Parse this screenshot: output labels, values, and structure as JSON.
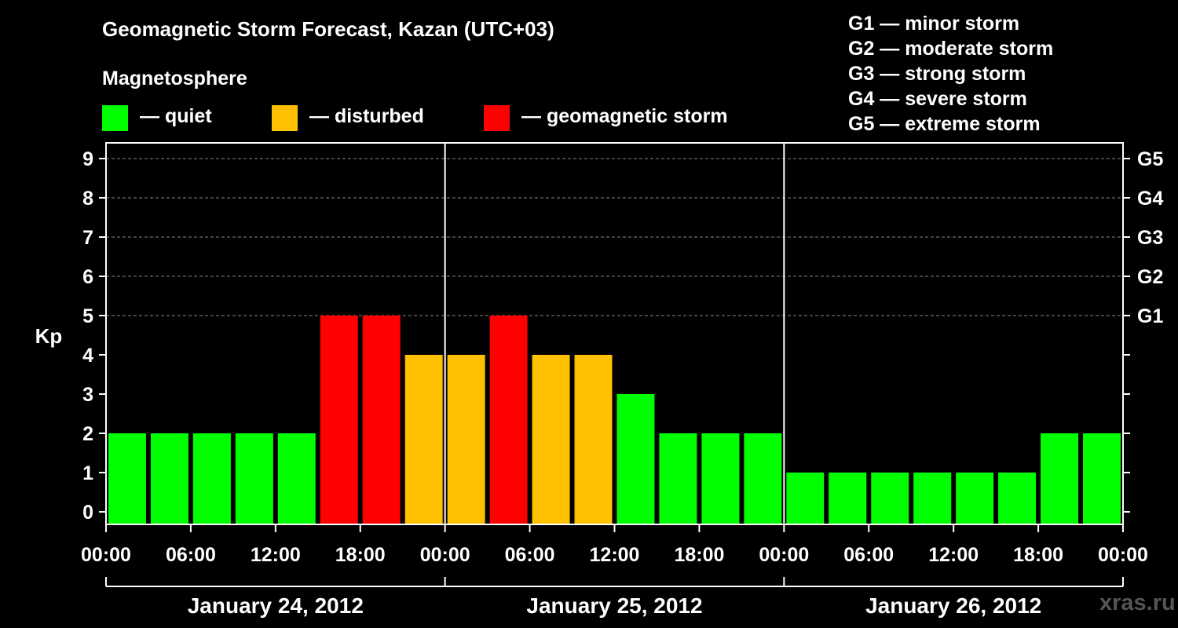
{
  "title": "Geomagnetic Storm Forecast, Kazan (UTC+03)",
  "subtitle": "Magnetosphere",
  "legend": [
    {
      "label": "— quiet",
      "color": "#00ff00"
    },
    {
      "label": "— disturbed",
      "color": "#ffc000"
    },
    {
      "label": "— geomagnetic storm",
      "color": "#ff0000"
    }
  ],
  "g_levels": [
    "G1 — minor storm",
    "G2 — moderate storm",
    "G3 — strong storm",
    "G4 — severe storm",
    "G5 — extreme storm"
  ],
  "watermark": "xras.ru",
  "colors": {
    "quiet": "#00ff00",
    "disturbed": "#ffc000",
    "storm": "#ff0000",
    "background": "#000000",
    "axis": "#ffffff"
  },
  "chart_data": {
    "type": "bar",
    "ylabel": "Kp",
    "ylim": [
      0,
      9
    ],
    "yticks": [
      0,
      1,
      2,
      3,
      4,
      5,
      6,
      7,
      8,
      9
    ],
    "right_axis_labels": [
      {
        "kp": 5,
        "label": "G1"
      },
      {
        "kp": 6,
        "label": "G2"
      },
      {
        "kp": 7,
        "label": "G3"
      },
      {
        "kp": 8,
        "label": "G4"
      },
      {
        "kp": 9,
        "label": "G5"
      }
    ],
    "grid": true,
    "x_tick_labels": [
      "00:00",
      "06:00",
      "12:00",
      "18:00",
      "00:00",
      "06:00",
      "12:00",
      "18:00",
      "00:00",
      "06:00",
      "12:00",
      "18:00",
      "00:00"
    ],
    "days": [
      "January 24, 2012",
      "January 25, 2012",
      "January 26, 2012"
    ],
    "interval_hours": 3,
    "values": [
      2,
      2,
      2,
      2,
      2,
      5,
      5,
      4,
      4,
      5,
      4,
      4,
      3,
      2,
      2,
      2,
      1,
      1,
      1,
      1,
      1,
      1,
      2,
      2
    ],
    "levels": [
      "quiet",
      "quiet",
      "quiet",
      "quiet",
      "quiet",
      "storm",
      "storm",
      "disturbed",
      "disturbed",
      "storm",
      "disturbed",
      "disturbed",
      "quiet",
      "quiet",
      "quiet",
      "quiet",
      "quiet",
      "quiet",
      "quiet",
      "quiet",
      "quiet",
      "quiet",
      "quiet",
      "quiet"
    ]
  }
}
